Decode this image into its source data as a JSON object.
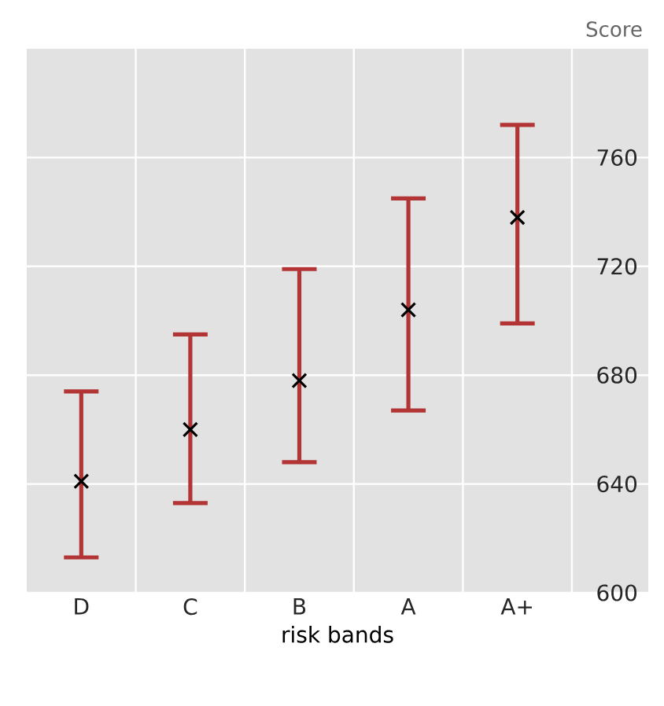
{
  "chart_data": {
    "type": "scatter",
    "xlabel": "risk bands",
    "ylabel": "Score",
    "categories": [
      "D",
      "C",
      "B",
      "A",
      "A+"
    ],
    "series": [
      {
        "color": "#000000",
        "values": [
          641,
          660,
          678,
          704,
          738
        ],
        "errors": [
          [
            613,
            674
          ],
          [
            633,
            695
          ],
          [
            648,
            719
          ],
          [
            667,
            745
          ],
          [
            699,
            772
          ]
        ]
      }
    ],
    "marker": "cross",
    "ylim": [
      600,
      800
    ],
    "yticks": [
      600,
      640,
      680,
      720,
      760
    ],
    "grid": true
  }
}
